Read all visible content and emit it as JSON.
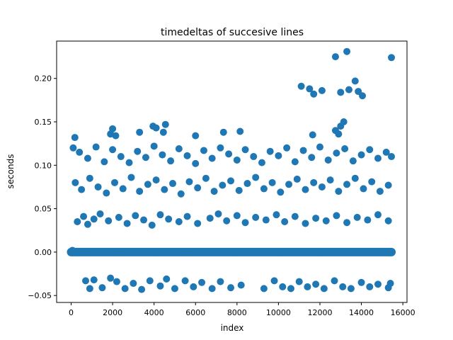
{
  "chart_data": {
    "type": "scatter",
    "title": "timedeltas of succesive lines",
    "xlabel": "index",
    "ylabel": "seconds",
    "xlim": [
      -700,
      16200
    ],
    "ylim": [
      -0.058,
      0.243
    ],
    "xticks": [
      0,
      2000,
      4000,
      6000,
      8000,
      10000,
      12000,
      14000,
      16000
    ],
    "yticks": [
      -0.05,
      0.0,
      0.05,
      0.1,
      0.15,
      0.2
    ],
    "ytick_labels": [
      "−0.05",
      "0.00",
      "0.05",
      "0.10",
      "0.15",
      "0.20"
    ],
    "grid": false,
    "marker_color": "#1f77b4",
    "series": [
      {
        "points": [
          [
            0,
            0.0
          ],
          [
            2000,
            0.0
          ],
          [
            4000,
            0.0
          ],
          [
            6000,
            0.0
          ],
          [
            8000,
            0.0
          ],
          [
            10000,
            0.0
          ],
          [
            12000,
            0.0
          ],
          [
            14000,
            0.0
          ],
          [
            15450,
            0.0
          ],
          [
            60,
            0.002
          ],
          [
            120,
            0.001
          ],
          [
            100,
            0.12
          ],
          [
            180,
            0.132
          ],
          [
            400,
            0.115
          ],
          [
            800,
            0.108
          ],
          [
            1200,
            0.121
          ],
          [
            1600,
            0.104
          ],
          [
            2000,
            0.118
          ],
          [
            2400,
            0.11
          ],
          [
            2800,
            0.103
          ],
          [
            3200,
            0.116
          ],
          [
            3600,
            0.109
          ],
          [
            4000,
            0.122
          ],
          [
            4400,
            0.112
          ],
          [
            4800,
            0.105
          ],
          [
            5200,
            0.119
          ],
          [
            5600,
            0.111
          ],
          [
            6000,
            0.102
          ],
          [
            6400,
            0.117
          ],
          [
            6800,
            0.108
          ],
          [
            7200,
            0.12
          ],
          [
            7600,
            0.113
          ],
          [
            8000,
            0.106
          ],
          [
            8400,
            0.118
          ],
          [
            8800,
            0.11
          ],
          [
            9200,
            0.103
          ],
          [
            9600,
            0.116
          ],
          [
            10000,
            0.111
          ],
          [
            10400,
            0.12
          ],
          [
            10800,
            0.104
          ],
          [
            11200,
            0.117
          ],
          [
            11600,
            0.109
          ],
          [
            12000,
            0.121
          ],
          [
            12400,
            0.106
          ],
          [
            12800,
            0.114
          ],
          [
            13200,
            0.119
          ],
          [
            13600,
            0.105
          ],
          [
            14000,
            0.112
          ],
          [
            14400,
            0.118
          ],
          [
            14800,
            0.108
          ],
          [
            15200,
            0.115
          ],
          [
            15450,
            0.11
          ],
          [
            1900,
            0.136
          ],
          [
            2000,
            0.142
          ],
          [
            2150,
            0.134
          ],
          [
            3300,
            0.138
          ],
          [
            3950,
            0.145
          ],
          [
            4100,
            0.143
          ],
          [
            4450,
            0.138
          ],
          [
            4550,
            0.147
          ],
          [
            6000,
            0.134
          ],
          [
            7350,
            0.138
          ],
          [
            8150,
            0.139
          ],
          [
            11650,
            0.135
          ],
          [
            12750,
            0.14
          ],
          [
            13000,
            0.145
          ],
          [
            13150,
            0.15
          ],
          [
            12900,
            0.136
          ],
          [
            200,
            0.08
          ],
          [
            500,
            0.072
          ],
          [
            900,
            0.085
          ],
          [
            1300,
            0.075
          ],
          [
            1700,
            0.068
          ],
          [
            2100,
            0.08
          ],
          [
            2500,
            0.073
          ],
          [
            2900,
            0.086
          ],
          [
            3300,
            0.07
          ],
          [
            3700,
            0.078
          ],
          [
            4100,
            0.083
          ],
          [
            4500,
            0.072
          ],
          [
            4900,
            0.079
          ],
          [
            5300,
            0.067
          ],
          [
            5700,
            0.081
          ],
          [
            6100,
            0.074
          ],
          [
            6500,
            0.085
          ],
          [
            6900,
            0.07
          ],
          [
            7300,
            0.077
          ],
          [
            7700,
            0.082
          ],
          [
            8100,
            0.071
          ],
          [
            8500,
            0.079
          ],
          [
            8900,
            0.086
          ],
          [
            9300,
            0.073
          ],
          [
            9700,
            0.08
          ],
          [
            10100,
            0.069
          ],
          [
            10500,
            0.078
          ],
          [
            10900,
            0.084
          ],
          [
            11300,
            0.072
          ],
          [
            11700,
            0.08
          ],
          [
            12100,
            0.075
          ],
          [
            12500,
            0.083
          ],
          [
            12900,
            0.07
          ],
          [
            13300,
            0.078
          ],
          [
            13700,
            0.085
          ],
          [
            14100,
            0.073
          ],
          [
            14500,
            0.081
          ],
          [
            14900,
            0.07
          ],
          [
            15300,
            0.077
          ],
          [
            300,
            0.035
          ],
          [
            600,
            0.041
          ],
          [
            800,
            0.032
          ],
          [
            1100,
            0.038
          ],
          [
            1400,
            0.044
          ],
          [
            1800,
            0.036
          ],
          [
            2300,
            0.04
          ],
          [
            2700,
            0.033
          ],
          [
            3100,
            0.042
          ],
          [
            3500,
            0.037
          ],
          [
            3900,
            0.031
          ],
          [
            4300,
            0.043
          ],
          [
            4700,
            0.038
          ],
          [
            5200,
            0.035
          ],
          [
            5600,
            0.041
          ],
          [
            6100,
            0.033
          ],
          [
            6700,
            0.039
          ],
          [
            7100,
            0.044
          ],
          [
            7500,
            0.036
          ],
          [
            8000,
            0.042
          ],
          [
            8400,
            0.034
          ],
          [
            8900,
            0.04
          ],
          [
            9400,
            0.037
          ],
          [
            9900,
            0.043
          ],
          [
            10300,
            0.035
          ],
          [
            10800,
            0.041
          ],
          [
            11300,
            0.033
          ],
          [
            11800,
            0.039
          ],
          [
            12300,
            0.036
          ],
          [
            12800,
            0.042
          ],
          [
            13300,
            0.034
          ],
          [
            13800,
            0.04
          ],
          [
            14300,
            0.037
          ],
          [
            14800,
            0.043
          ],
          [
            15300,
            0.036
          ],
          [
            700,
            -0.033
          ],
          [
            900,
            -0.042
          ],
          [
            1100,
            -0.032
          ],
          [
            1500,
            -0.041
          ],
          [
            1900,
            -0.03
          ],
          [
            2200,
            -0.034
          ],
          [
            2600,
            -0.042
          ],
          [
            3000,
            -0.036
          ],
          [
            3400,
            -0.043
          ],
          [
            3800,
            -0.033
          ],
          [
            4300,
            -0.039
          ],
          [
            4600,
            -0.031
          ],
          [
            5000,
            -0.042
          ],
          [
            5500,
            -0.033
          ],
          [
            5900,
            -0.04
          ],
          [
            6300,
            -0.035
          ],
          [
            6800,
            -0.042
          ],
          [
            7200,
            -0.034
          ],
          [
            7700,
            -0.041
          ],
          [
            8200,
            -0.038
          ],
          [
            9300,
            -0.042
          ],
          [
            9800,
            -0.033
          ],
          [
            10200,
            -0.04
          ],
          [
            10600,
            -0.042
          ],
          [
            11000,
            -0.034
          ],
          [
            11400,
            -0.04
          ],
          [
            11800,
            -0.037
          ],
          [
            12200,
            -0.042
          ],
          [
            12700,
            -0.033
          ],
          [
            13100,
            -0.04
          ],
          [
            13500,
            -0.042
          ],
          [
            14000,
            -0.035
          ],
          [
            14400,
            -0.04
          ],
          [
            14800,
            -0.037
          ],
          [
            15300,
            -0.041
          ],
          [
            15400,
            -0.036
          ],
          [
            11100,
            0.191
          ],
          [
            11500,
            0.188
          ],
          [
            11700,
            0.182
          ],
          [
            12100,
            0.186
          ],
          [
            12750,
            0.225
          ],
          [
            13000,
            0.184
          ],
          [
            13300,
            0.231
          ],
          [
            13400,
            0.187
          ],
          [
            13700,
            0.197
          ],
          [
            13850,
            0.185
          ],
          [
            14050,
            0.18
          ],
          [
            15450,
            0.224
          ]
        ]
      }
    ]
  }
}
